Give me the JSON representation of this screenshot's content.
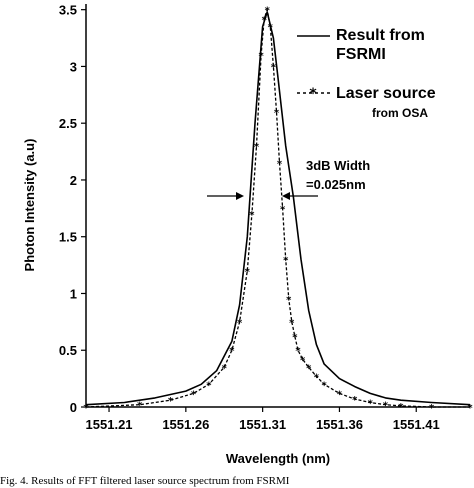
{
  "chart_data": {
    "type": "line",
    "title": "",
    "xlabel": "Wavelength (nm)",
    "ylabel": "Photon Intensity (a.u)",
    "xlim": [
      1551.195,
      1551.445
    ],
    "ylim": [
      0,
      3.55
    ],
    "x_ticks": [
      "1551.21",
      "1551.26",
      "1551.31",
      "1551.36",
      "1551.41"
    ],
    "x_tick_values": [
      1551.21,
      1551.26,
      1551.31,
      1551.36,
      1551.41
    ],
    "y_ticks": [
      "0",
      "0.5",
      "1",
      "1.5",
      "2",
      "2.5",
      "3",
      "3.5"
    ],
    "y_tick_values": [
      0,
      0.5,
      1,
      1.5,
      2,
      2.5,
      3,
      3.5
    ],
    "grid": false,
    "legend_position": "top-right",
    "series": [
      {
        "name": "Result from FSRMI",
        "legend_lines": [
          "Result from",
          "FSRMI"
        ],
        "style": "solid",
        "x": [
          1551.195,
          1551.22,
          1551.24,
          1551.26,
          1551.27,
          1551.28,
          1551.29,
          1551.295,
          1551.3,
          1551.305,
          1551.31,
          1551.313,
          1551.317,
          1551.32,
          1551.325,
          1551.33,
          1551.335,
          1551.34,
          1551.345,
          1551.35,
          1551.36,
          1551.37,
          1551.38,
          1551.39,
          1551.4,
          1551.42,
          1551.445
        ],
        "y": [
          0.02,
          0.04,
          0.08,
          0.14,
          0.2,
          0.32,
          0.58,
          0.9,
          1.5,
          2.5,
          3.35,
          3.48,
          3.25,
          2.9,
          2.3,
          1.85,
          1.3,
          0.85,
          0.55,
          0.38,
          0.25,
          0.18,
          0.12,
          0.08,
          0.06,
          0.04,
          0.02
        ]
      },
      {
        "name": "Laser source from OSA",
        "legend_main": "Laser source",
        "legend_sub": "from OSA",
        "style": "dashed-star",
        "x": [
          1551.195,
          1551.23,
          1551.25,
          1551.265,
          1551.275,
          1551.285,
          1551.29,
          1551.295,
          1551.3,
          1551.303,
          1551.306,
          1551.309,
          1551.311,
          1551.313,
          1551.315,
          1551.317,
          1551.319,
          1551.321,
          1551.323,
          1551.325,
          1551.327,
          1551.329,
          1551.331,
          1551.333,
          1551.336,
          1551.34,
          1551.345,
          1551.35,
          1551.36,
          1551.37,
          1551.38,
          1551.39,
          1551.4,
          1551.42,
          1551.445
        ],
        "y": [
          0.0,
          0.02,
          0.06,
          0.12,
          0.2,
          0.35,
          0.5,
          0.75,
          1.2,
          1.7,
          2.3,
          3.1,
          3.42,
          3.5,
          3.35,
          3.0,
          2.6,
          2.15,
          1.75,
          1.3,
          0.95,
          0.75,
          0.62,
          0.5,
          0.42,
          0.35,
          0.27,
          0.2,
          0.12,
          0.07,
          0.04,
          0.02,
          0.01,
          0.0,
          0.0
        ]
      }
    ],
    "annotations": [
      {
        "text_line1": "3dB Width",
        "text_line2": "=0.025nm"
      }
    ],
    "caption": "Fig. 4. Results of FFT filtered laser source spectrum from FSRMI"
  }
}
